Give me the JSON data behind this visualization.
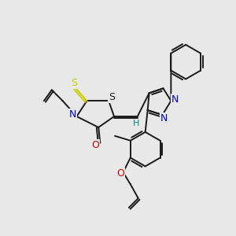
{
  "background_color": "#e8e8e8",
  "bond_color": "#1a1a1a",
  "atom_colors": {
    "N": "#0000ee",
    "O": "#cc0000",
    "S_thioxo": "#cccc00",
    "S_ring": "#1a1a1a",
    "H": "#008888",
    "C": "#1a1a1a"
  },
  "figsize": [
    3.0,
    3.0
  ],
  "dpi": 100
}
